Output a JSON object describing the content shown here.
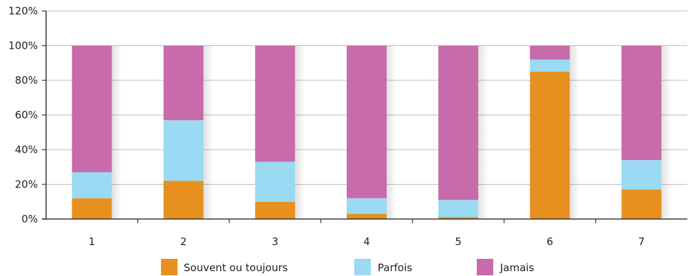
{
  "chart_data": {
    "type": "bar",
    "stacked": true,
    "categories": [
      "1",
      "2",
      "3",
      "4",
      "5",
      "6",
      "7"
    ],
    "series": [
      {
        "name": "Souvent ou toujours",
        "color": "#E8901F",
        "values": [
          12,
          22,
          10,
          3,
          1,
          85,
          17
        ]
      },
      {
        "name": "Parfois",
        "color": "#9ADAF2",
        "values": [
          15,
          35,
          23,
          9,
          10,
          7,
          17
        ]
      },
      {
        "name": "Jamais",
        "color": "#C76BAA",
        "values": [
          73,
          43,
          67,
          88,
          89,
          8,
          66
        ]
      }
    ],
    "yticks": [
      "0%",
      "20%",
      "40%",
      "60%",
      "80%",
      "100%",
      "120%"
    ],
    "ylim": [
      0,
      120
    ],
    "grid": true,
    "legend_position": "bottom",
    "title": "",
    "xlabel": "",
    "ylabel": ""
  }
}
